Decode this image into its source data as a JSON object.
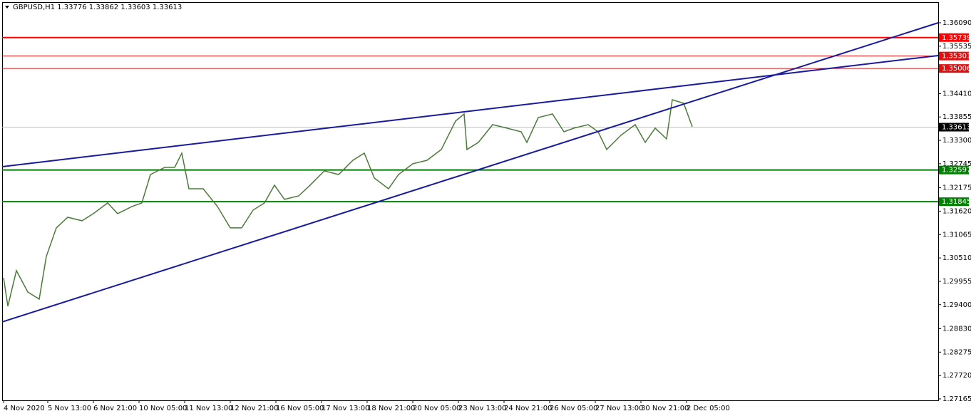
{
  "chart_data": {
    "type": "line",
    "title": "GBPUSD,H1  1.33776 1.33862 1.33603 1.33613",
    "x": [
      1,
      4,
      10,
      18,
      26,
      31,
      38,
      46,
      56,
      64,
      74,
      81,
      91,
      98,
      104,
      114,
      121,
      126,
      131,
      141,
      151,
      160,
      168,
      176,
      184,
      191,
      198,
      208,
      216,
      226,
      236,
      246,
      254,
      261,
      271,
      278,
      288,
      298,
      308,
      318,
      324,
      326,
      334,
      344,
      354,
      364,
      368,
      376,
      386,
      394,
      401,
      411,
      418,
      424,
      434,
      444,
      451,
      458,
      466,
      470,
      478,
      484
    ],
    "values": [
      1.3004,
      1.29364,
      1.30209,
      1.29701,
      1.29533,
      1.30547,
      1.31223,
      1.31476,
      1.31392,
      1.31561,
      1.31815,
      1.31561,
      1.3173,
      1.31815,
      1.3249,
      1.32659,
      1.32659,
      1.32997,
      1.32152,
      1.32152,
      1.3173,
      1.31223,
      1.31223,
      1.31646,
      1.31815,
      1.32237,
      1.31899,
      1.31983,
      1.32237,
      1.32575,
      1.3249,
      1.32828,
      1.32997,
      1.32406,
      1.32152,
      1.3249,
      1.32744,
      1.32828,
      1.33082,
      1.33758,
      1.33927,
      1.33082,
      1.33251,
      1.33673,
      1.33589,
      1.33504,
      1.33251,
      1.33842,
      1.33927,
      1.33504,
      1.33589,
      1.33673,
      1.33504,
      1.33082,
      1.3342,
      1.33673,
      1.33251,
      1.33589,
      1.33335,
      1.34265,
      1.3418,
      1.33623
    ],
    "color": "#4c7a3a",
    "xlim": [
      0,
      656.5
    ],
    "ylim": [
      1.27131,
      1.3658
    ],
    "xticks": [
      {
        "value": 1,
        "label": "4 Nov 2020"
      },
      {
        "value": 32,
        "label": "5 Nov 13:00"
      },
      {
        "value": 64,
        "label": "6 Nov 21:00"
      },
      {
        "value": 96,
        "label": "10 Nov 05:00"
      },
      {
        "value": 128,
        "label": "11 Nov 13:00"
      },
      {
        "value": 160,
        "label": "12 Nov 21:00"
      },
      {
        "value": 192,
        "label": "16 Nov 05:00"
      },
      {
        "value": 224,
        "label": "17 Nov 13:00"
      },
      {
        "value": 256,
        "label": "18 Nov 21:00"
      },
      {
        "value": 288,
        "label": "20 Nov 05:00"
      },
      {
        "value": 320,
        "label": "23 Nov 13:00"
      },
      {
        "value": 352,
        "label": "24 Nov 21:00"
      },
      {
        "value": 384,
        "label": "26 Nov 05:00"
      },
      {
        "value": 416,
        "label": "27 Nov 13:00"
      },
      {
        "value": 448,
        "label": "30 Nov 21:00"
      },
      {
        "value": 480,
        "label": "2 Dec 05:00"
      }
    ],
    "yticks": [
      {
        "value": 1.3609,
        "label": "1.36090"
      },
      1.35535,
      {
        "value": 1.3441,
        "label": "1.34410"
      },
      1.33855,
      {
        "value": 1.333,
        "label": "1.33300"
      },
      1.32745,
      1.32175,
      {
        "value": 1.3162,
        "label": "1.31620"
      },
      1.31065,
      {
        "value": 1.3051,
        "label": "1.30510"
      },
      1.29955,
      {
        "value": 1.294,
        "label": "1.29400"
      },
      {
        "value": 1.2883,
        "label": "1.28830"
      },
      1.28275,
      {
        "value": 1.2772,
        "label": "1.27720"
      },
      1.27165
    ],
    "levels": [
      {
        "value": 1.35739,
        "color": "#ff0000"
      },
      {
        "value": 1.35301,
        "color": "#e01010"
      },
      {
        "value": 1.35006,
        "color": "#e01010"
      },
      {
        "value": 1.32597,
        "color": "#008000"
      },
      {
        "value": 1.31845,
        "color": "#008000"
      }
    ],
    "current_price": 1.33613,
    "trend_lines": [
      {
        "x": [
          0,
          656.5
        ],
        "y": [
          1.32676,
          1.35313
        ],
        "color": "#1a1aa0"
      },
      {
        "x": [
          0,
          656.5
        ],
        "y": [
          1.28992,
          1.3609
        ],
        "color": "#1a1aa0"
      }
    ]
  }
}
